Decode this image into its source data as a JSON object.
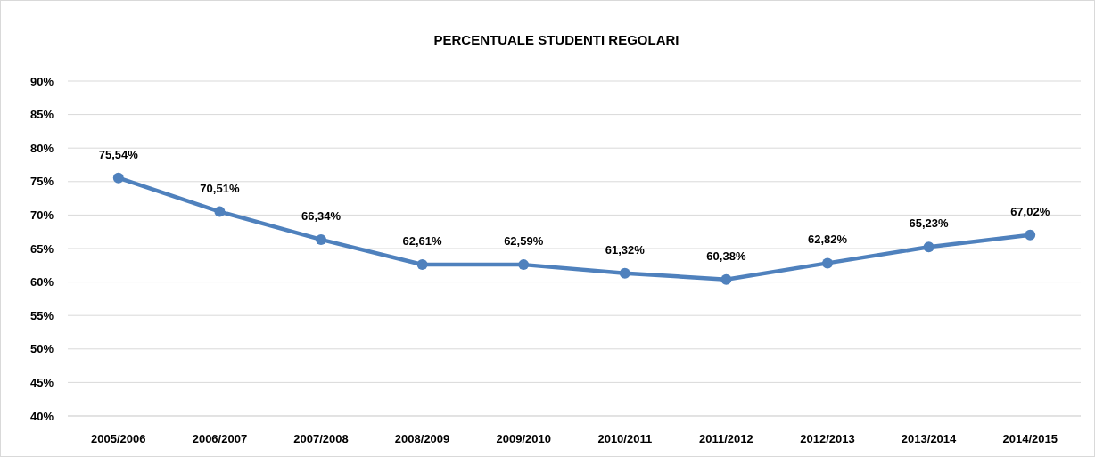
{
  "chart_data": {
    "type": "line",
    "title": "PERCENTUALE STUDENTI REGOLARI",
    "categories": [
      "2005/2006",
      "2006/2007",
      "2007/2008",
      "2008/2009",
      "2009/2010",
      "2010/2011",
      "2011/2012",
      "2012/2013",
      "2013/2014",
      "2014/2015"
    ],
    "series": [
      {
        "color": "#4f81bd",
        "values": [
          75.54,
          70.51,
          66.34,
          62.61,
          62.59,
          61.32,
          60.38,
          62.82,
          65.23,
          67.02
        ],
        "value_labels": [
          "75,54%",
          "70,51%",
          "66,34%",
          "62,61%",
          "62,59%",
          "61,32%",
          "60,38%",
          "62,82%",
          "65,23%",
          "67,02%"
        ]
      }
    ],
    "ylim": [
      40,
      90
    ],
    "yticks": [
      {
        "value": 40,
        "label": "40%"
      },
      {
        "value": 45,
        "label": "45%"
      },
      {
        "value": 50,
        "label": "50%"
      },
      {
        "value": 55,
        "label": "55%"
      },
      {
        "value": 60,
        "label": "60%"
      },
      {
        "value": 65,
        "label": "65%"
      },
      {
        "value": 70,
        "label": "70%"
      },
      {
        "value": 75,
        "label": "75%"
      },
      {
        "value": 80,
        "label": "80%"
      },
      {
        "value": 85,
        "label": "85%"
      },
      {
        "value": 90,
        "label": "90%"
      }
    ],
    "grid": "y",
    "marker": "circle",
    "line_style": "solid"
  }
}
